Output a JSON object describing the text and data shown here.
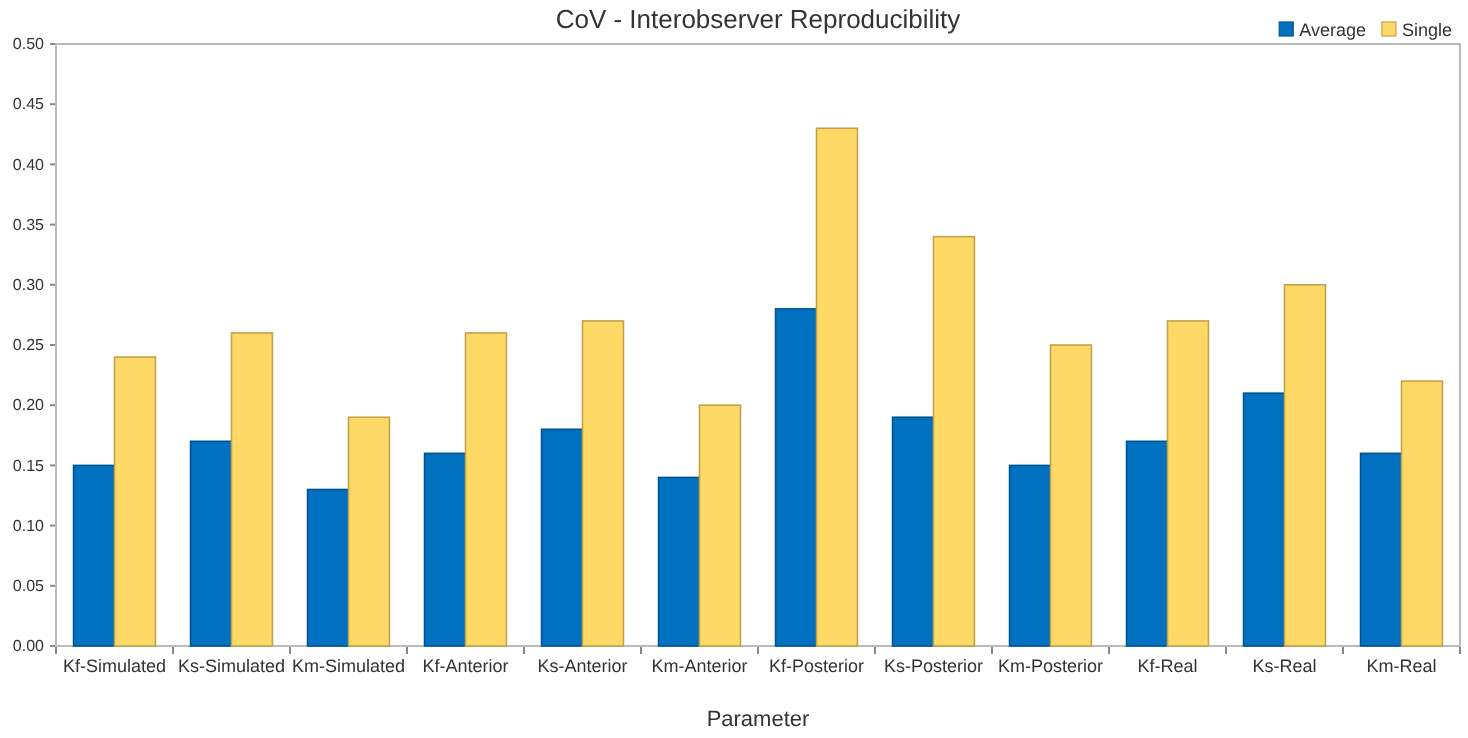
{
  "chart_data": {
    "type": "bar",
    "title": "CoV - Interobserver Reproducibility",
    "xlabel": "Parameter",
    "categories": [
      "Kf-Simulated",
      "Ks-Simulated",
      "Km-Simulated",
      "Kf-Anterior",
      "Ks-Anterior",
      "Km-Anterior",
      "Kf-Posterior",
      "Ks-Posterior",
      "Km-Posterior",
      "Kf-Real",
      "Ks-Real",
      "Km-Real"
    ],
    "series": [
      {
        "name": "Average",
        "color": "#0070c0",
        "values": [
          0.15,
          0.17,
          0.13,
          0.16,
          0.18,
          0.14,
          0.28,
          0.19,
          0.15,
          0.17,
          0.21,
          0.16
        ]
      },
      {
        "name": "Single",
        "color": "#ffd966",
        "values": [
          0.24,
          0.26,
          0.19,
          0.26,
          0.27,
          0.2,
          0.43,
          0.34,
          0.25,
          0.27,
          0.3,
          0.22
        ]
      }
    ],
    "ylim": [
      0,
      0.5
    ],
    "yticks": [
      {
        "value": 0,
        "label": "0.00"
      },
      {
        "value": 0.05,
        "label": "0.05"
      },
      {
        "value": 0.1,
        "label": "0.10"
      },
      {
        "value": 0.15,
        "label": "0.15"
      },
      {
        "value": 0.2,
        "label": "0.20"
      },
      {
        "value": 0.25,
        "label": "0.25"
      },
      {
        "value": 0.3,
        "label": "0.30"
      },
      {
        "value": 0.35,
        "label": "0.35"
      },
      {
        "value": 0.4,
        "label": "0.40"
      },
      {
        "value": 0.45,
        "label": "0.45"
      },
      {
        "value": 0.5,
        "label": "0.50"
      }
    ],
    "grid": false,
    "legend": "top right"
  }
}
